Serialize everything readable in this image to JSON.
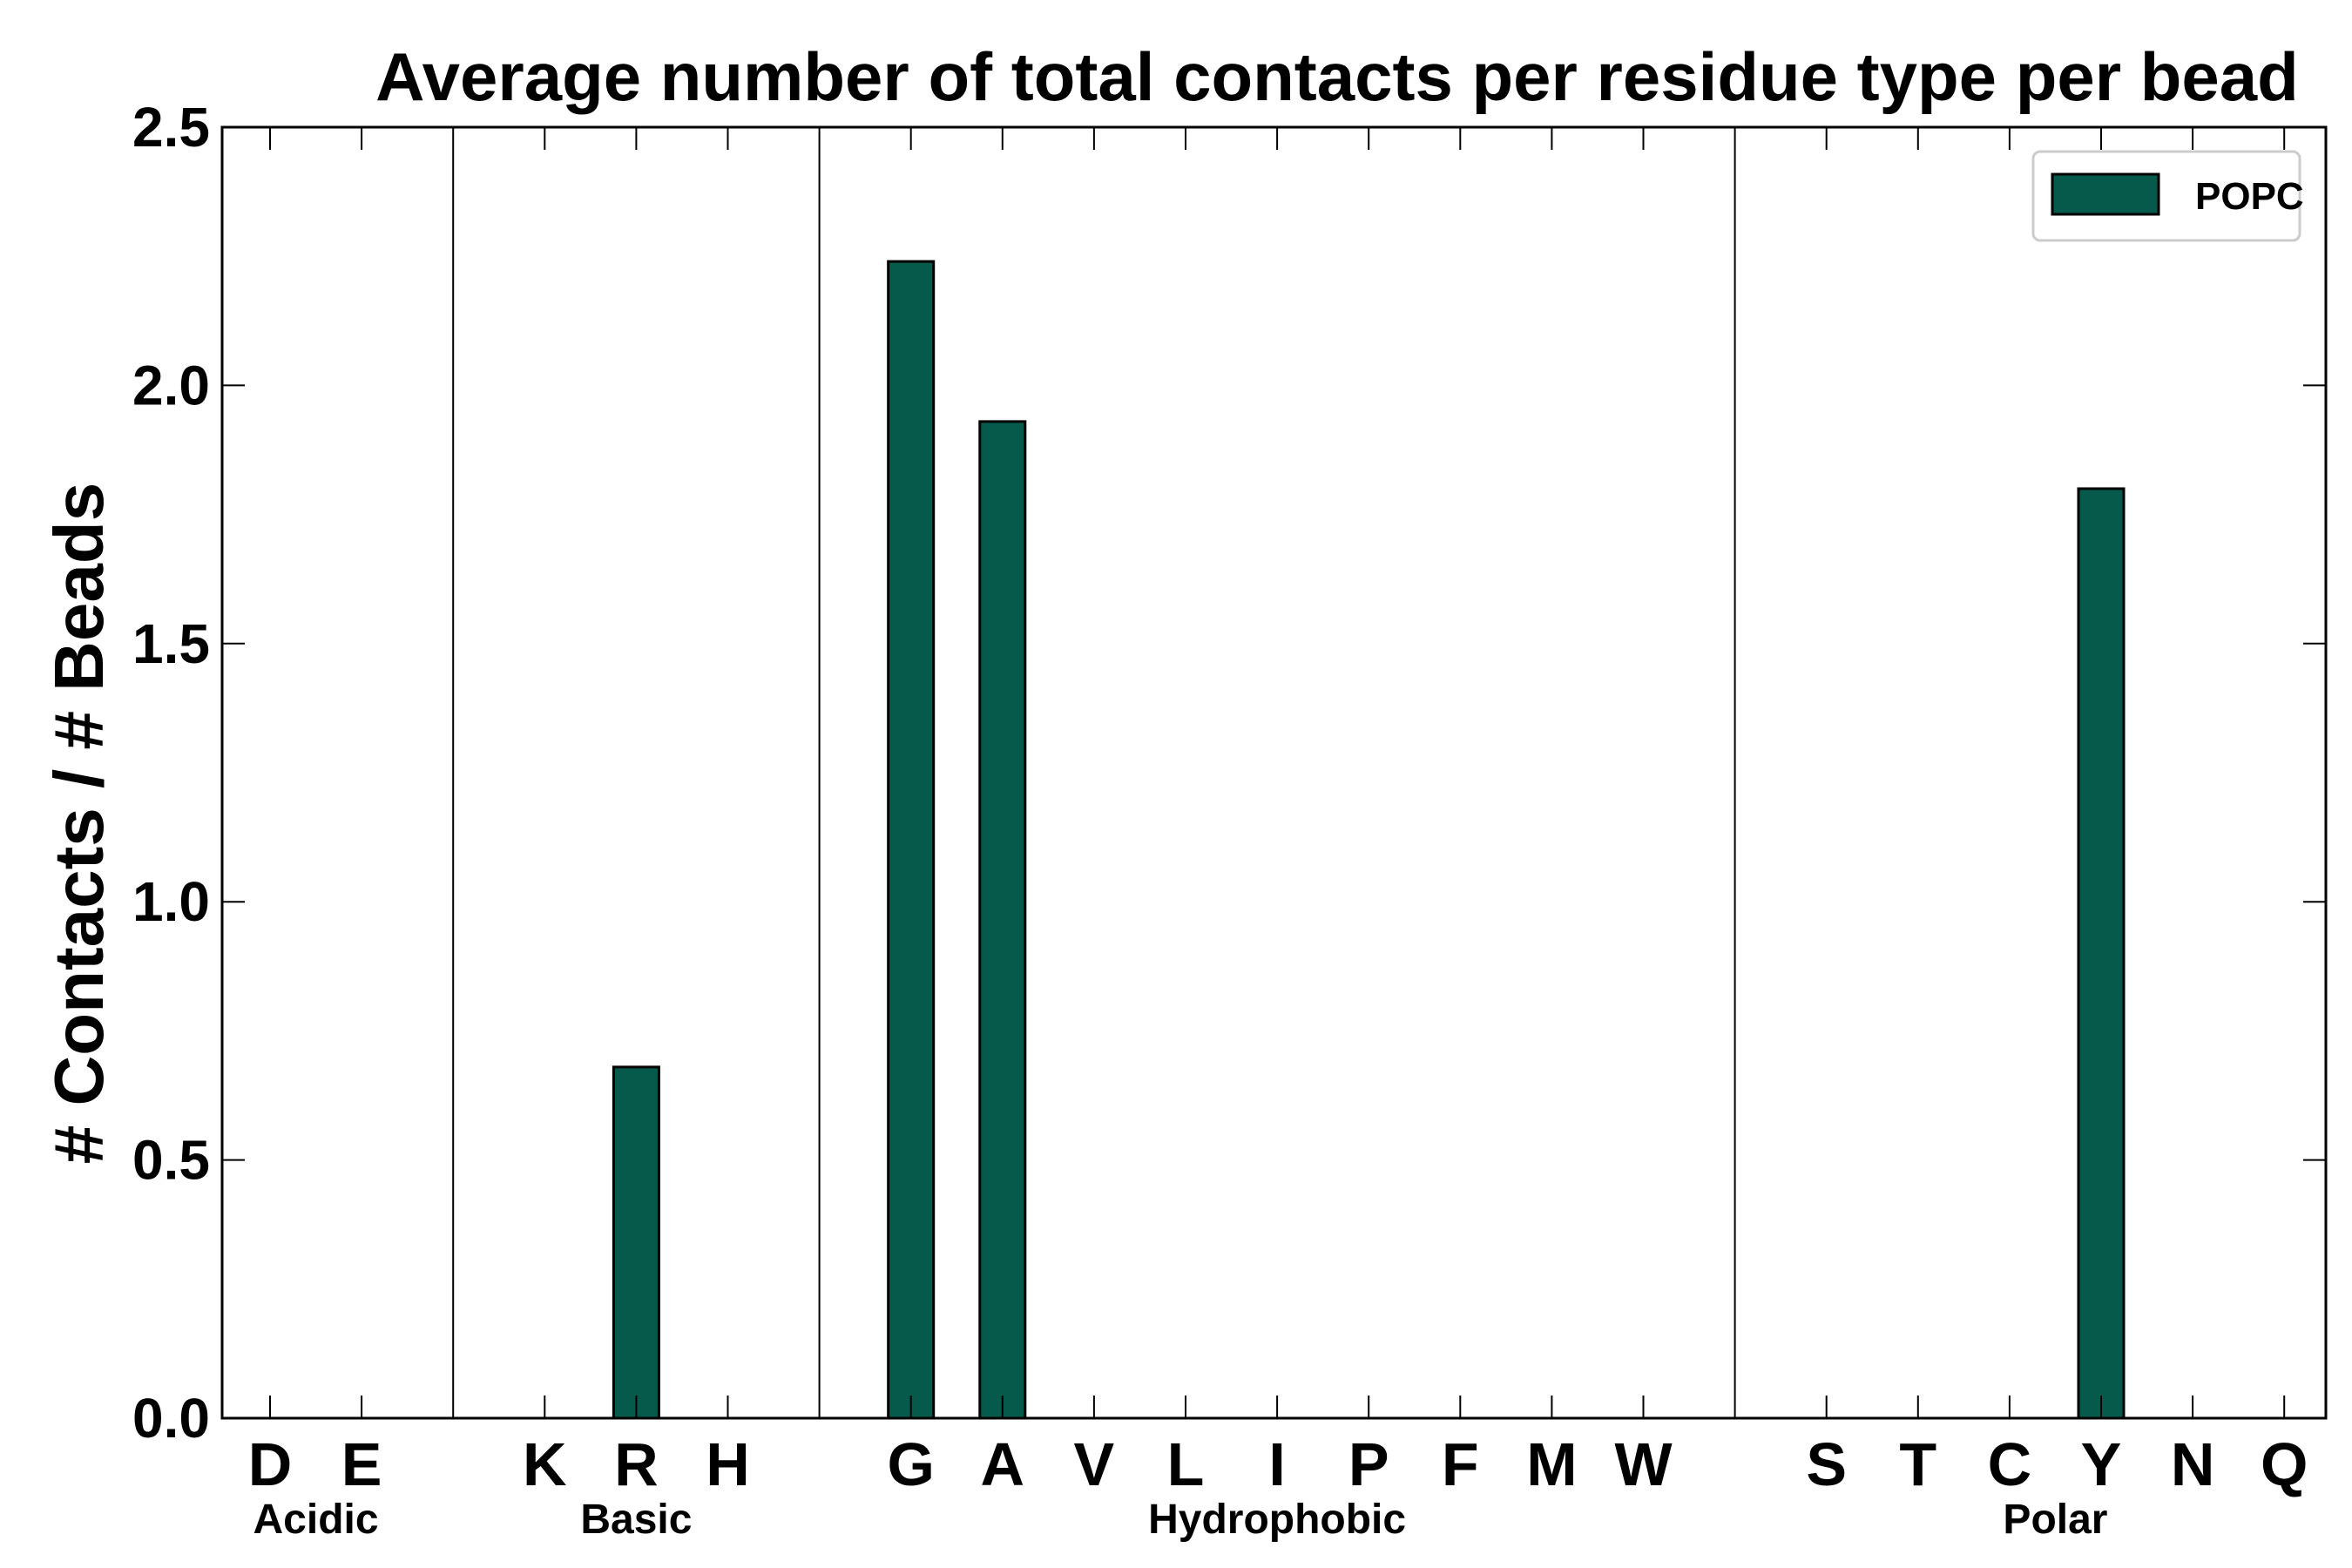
{
  "chart_data": {
    "type": "bar",
    "title": "Average number of total contacts per residue type per bead",
    "xlabel": "",
    "ylabel": "# Contacts / # Beads",
    "ylim": [
      0,
      2.5
    ],
    "yticks": [
      "0.0",
      "0.5",
      "1.0",
      "1.5",
      "2.0",
      "2.5"
    ],
    "categories": [
      "D",
      "E",
      "K",
      "R",
      "H",
      "G",
      "A",
      "V",
      "L",
      "I",
      "P",
      "F",
      "M",
      "W",
      "S",
      "T",
      "C",
      "Y",
      "N",
      "Q"
    ],
    "category_slots": [
      1,
      2,
      4,
      5,
      6,
      8,
      9,
      10,
      11,
      12,
      13,
      14,
      15,
      16,
      18,
      19,
      20,
      21,
      22,
      23
    ],
    "series": [
      {
        "name": "POPC",
        "values": [
          0,
          0,
          0,
          0.68,
          0,
          2.24,
          1.93,
          0,
          0,
          0,
          0,
          0,
          0,
          0,
          0,
          0,
          0,
          1.8,
          0,
          0
        ]
      }
    ],
    "groups": [
      {
        "label": "Acidic",
        "members": [
          "D",
          "E"
        ]
      },
      {
        "label": "Basic",
        "members": [
          "K",
          "R",
          "H"
        ]
      },
      {
        "label": "Hydrophobic",
        "members": [
          "G",
          "A",
          "V",
          "L",
          "I",
          "P",
          "F",
          "M",
          "W"
        ]
      },
      {
        "label": "Polar",
        "members": [
          "S",
          "T",
          "C",
          "Y",
          "N",
          "Q"
        ]
      }
    ],
    "legend": {
      "position": "top-right"
    },
    "grid": false,
    "colors": {
      "bar": "#065a4b",
      "bar_edge": "#000000"
    }
  }
}
